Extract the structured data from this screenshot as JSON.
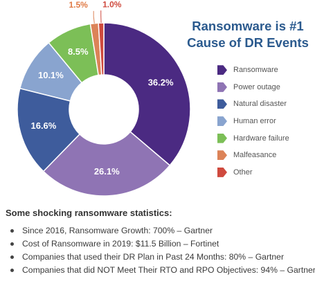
{
  "chart_data": {
    "type": "pie",
    "donut": true,
    "title_lines": [
      "Ransomware is #1",
      "Cause of DR Events"
    ],
    "slices": [
      {
        "label": "Ransomware",
        "value": 36.2,
        "value_label": "36.2%",
        "color": "#4b2a82"
      },
      {
        "label": "Power outage",
        "value": 26.1,
        "value_label": "26.1%",
        "color": "#8f74b4"
      },
      {
        "label": "Natural disaster",
        "value": 16.6,
        "value_label": "16.6%",
        "color": "#3e5c9c"
      },
      {
        "label": "Human error",
        "value": 10.1,
        "value_label": "10.1%",
        "color": "#89a4cf"
      },
      {
        "label": "Hardware failure",
        "value": 8.5,
        "value_label": "8.5%",
        "color": "#7cbf57"
      },
      {
        "label": "Malfeasance",
        "value": 1.5,
        "value_label": "1.5%",
        "color": "#dc8358"
      },
      {
        "label": "Other",
        "value": 1.0,
        "value_label": "1.0%",
        "color": "#cf4a3e"
      }
    ],
    "legend_position": "right"
  },
  "stats_section": {
    "heading": "Some shocking ransomware statistics:",
    "items": [
      "Since 2016, Ransomware Growth: 700% – Gartner",
      "Cost of Ransomware in 2019: $11.5 Billion – Fortinet",
      "Companies that used their DR Plan in Past 24 Months: 80% – Gartner",
      "Companies that did NOT Meet Their RTO and RPO Objectives: 94% – Gartner"
    ]
  },
  "colors": {
    "title": "#2b5a8e",
    "small_label": "#e07a45"
  }
}
